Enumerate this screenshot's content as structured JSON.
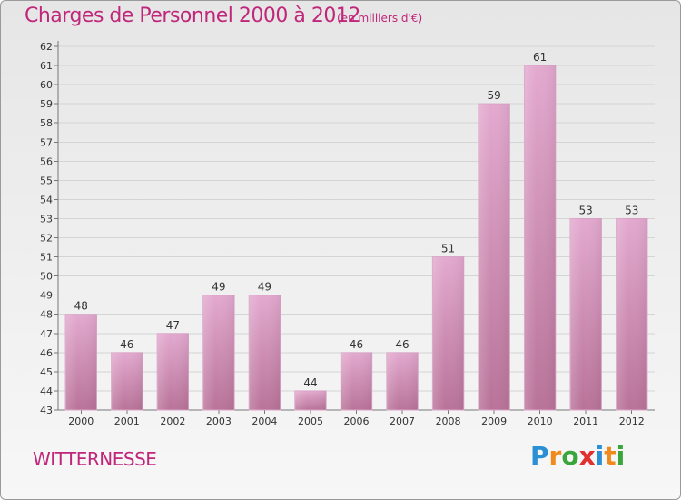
{
  "header": {
    "title": "Charges de Personnel 2000 à 2012",
    "subtitle": "(en milliers d'€)"
  },
  "footer": {
    "commune": "WITTERNESSE",
    "logo_letters": [
      {
        "ch": "P",
        "color": "#2a8fd4"
      },
      {
        "ch": "r",
        "color": "#f08a1c"
      },
      {
        "ch": "o",
        "color": "#3aa53a"
      },
      {
        "ch": "x",
        "color": "#e03030"
      },
      {
        "ch": "i",
        "color": "#2a8fd4"
      },
      {
        "ch": "t",
        "color": "#f08a1c"
      },
      {
        "ch": "i",
        "color": "#3aa53a"
      }
    ]
  },
  "colors": {
    "bar_top": "#e3a9cf",
    "bar_bottom": "#b97399",
    "accent": "#c0267a"
  },
  "chart_data": {
    "type": "bar",
    "title": "Charges de Personnel 2000 à 2012",
    "subtitle": "(en milliers d'€)",
    "categories": [
      "2000",
      "2001",
      "2002",
      "2003",
      "2004",
      "2005",
      "2006",
      "2007",
      "2008",
      "2009",
      "2010",
      "2011",
      "2012"
    ],
    "values": [
      48,
      46,
      47,
      49,
      49,
      44,
      46,
      46,
      51,
      59,
      61,
      53,
      53
    ],
    "ylim": [
      43,
      62
    ],
    "yticks": [
      43,
      44,
      45,
      46,
      47,
      48,
      49,
      50,
      51,
      52,
      53,
      54,
      55,
      56,
      57,
      58,
      59,
      60,
      61,
      62
    ],
    "grid": true,
    "data_labels": true
  }
}
